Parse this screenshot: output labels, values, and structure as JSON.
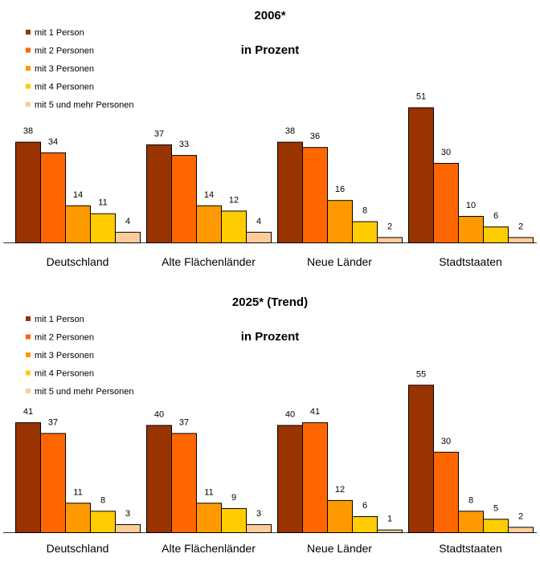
{
  "chart_data": [
    {
      "type": "bar",
      "title": "2006*",
      "subtitle": "in Prozent",
      "categories": [
        "Deutschland",
        "Alte Flächenländer",
        "Neue Länder",
        "Stadtstaaten"
      ],
      "series": [
        {
          "name": "mit 1 Person",
          "color": "#993300",
          "values": [
            38,
            37,
            38,
            51
          ]
        },
        {
          "name": "mit 2 Personen",
          "color": "#FF6600",
          "values": [
            34,
            33,
            36,
            30
          ]
        },
        {
          "name": "mit 3 Personen",
          "color": "#FF9900",
          "values": [
            14,
            14,
            16,
            10
          ]
        },
        {
          "name": "mit 4 Personen",
          "color": "#FFCC00",
          "values": [
            11,
            12,
            8,
            6
          ]
        },
        {
          "name": "mit 5 und mehr Personen",
          "color": "#FFCC99",
          "values": [
            4,
            4,
            2,
            2
          ]
        }
      ],
      "ylim": [
        0,
        55
      ],
      "legend": "top-left",
      "grid": false
    },
    {
      "type": "bar",
      "title": "2025* (Trend)",
      "subtitle": "in Prozent",
      "categories": [
        "Deutschland",
        "Alte Flächenländer",
        "Neue Länder",
        "Stadtstaaten"
      ],
      "series": [
        {
          "name": "mit 1 Person",
          "color": "#993300",
          "values": [
            41,
            40,
            40,
            55
          ]
        },
        {
          "name": "mit 2 Personen",
          "color": "#FF6600",
          "values": [
            37,
            37,
            41,
            30
          ]
        },
        {
          "name": "mit 3 Personen",
          "color": "#FF9900",
          "values": [
            11,
            11,
            12,
            8
          ]
        },
        {
          "name": "mit 4 Personen",
          "color": "#FFCC00",
          "values": [
            8,
            9,
            6,
            5
          ]
        },
        {
          "name": "mit 5 und mehr Personen",
          "color": "#FFCC99",
          "values": [
            3,
            3,
            1,
            2
          ]
        }
      ],
      "ylim": [
        0,
        55
      ],
      "legend": "top-left",
      "grid": false
    }
  ]
}
